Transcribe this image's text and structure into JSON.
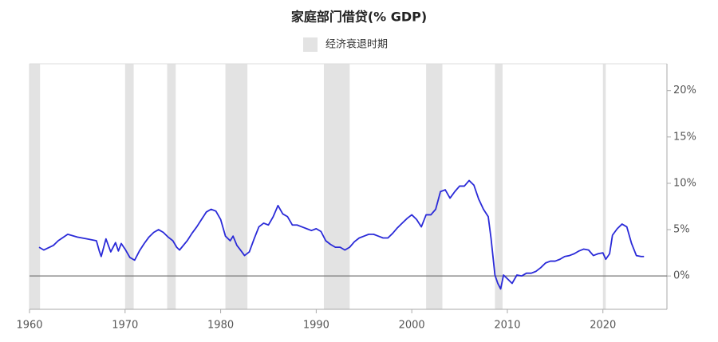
{
  "chart_data": {
    "type": "line",
    "title": "家庭部门借贷(% GDP)",
    "legend_label": "经济衰退时期",
    "recession_color": "#e3e3e3",
    "recessions": [
      [
        1960.0,
        1961.1
      ],
      [
        1970.0,
        1970.9
      ],
      [
        1974.4,
        1975.3
      ],
      [
        1980.5,
        1982.8
      ],
      [
        1990.8,
        1993.5
      ],
      [
        2001.5,
        2003.2
      ],
      [
        2008.7,
        2009.5
      ],
      [
        2020.0,
        2020.3
      ]
    ],
    "hline": 0,
    "xlim": [
      1960,
      2026.7
    ],
    "ylim": [
      -3.6,
      22.9
    ],
    "xticks": [
      1960,
      1970,
      1980,
      1990,
      2000,
      2010,
      2020
    ],
    "yticks": [
      {
        "value": 0,
        "label": "0%"
      },
      {
        "value": 5,
        "label": "5%"
      },
      {
        "value": 10,
        "label": "10%"
      },
      {
        "value": 15,
        "label": "15%"
      },
      {
        "value": 20,
        "label": "20%"
      }
    ],
    "y_axis_side": "right",
    "x": [
      1961,
      1961.5,
      1962.5,
      1963,
      1964,
      1965,
      1966,
      1967,
      1967.3,
      1967.5,
      1968,
      1968.5,
      1969,
      1969.3,
      1969.6,
      1970,
      1970.5,
      1971,
      1971.5,
      1972,
      1972.5,
      1973,
      1973.5,
      1974,
      1974.5,
      1975,
      1975.4,
      1975.7,
      1976.5,
      1977,
      1977.5,
      1978,
      1978.5,
      1979,
      1979.5,
      1980,
      1980.5,
      1981,
      1981.3,
      1981.7,
      1982,
      1982.5,
      1983,
      1983.5,
      1984,
      1984.5,
      1985,
      1985.5,
      1986,
      1986.5,
      1987,
      1987.5,
      1988,
      1988.5,
      1989,
      1989.5,
      1990,
      1990.5,
      1991,
      1991.5,
      1992,
      1992.5,
      1993,
      1993.5,
      1994,
      1994.5,
      1995,
      1995.5,
      1996,
      1996.5,
      1997,
      1997.5,
      1998,
      1998.5,
      1999,
      1999.5,
      2000,
      2000.5,
      2001,
      2001.5,
      2002,
      2002.5,
      2003,
      2003.5,
      2004,
      2004.5,
      2005,
      2005.5,
      2006,
      2006.5,
      2007,
      2007.5,
      2008,
      2008.3,
      2008.7,
      2009,
      2009.3,
      2009.6,
      2010,
      2010.5,
      2011,
      2011.5,
      2012,
      2012.5,
      2013,
      2013.5,
      2014,
      2014.5,
      2015,
      2015.5,
      2016,
      2016.5,
      2017,
      2017.5,
      2018,
      2018.5,
      2019,
      2019.5,
      2020,
      2020.3,
      2020.7,
      2021,
      2021.5,
      2022,
      2022.5,
      2023,
      2023.5,
      2024,
      2024.3
    ],
    "series": [
      {
        "name": "家庭部门借贷",
        "color": "#2a2ad8",
        "values": [
          3.1,
          2.8,
          3.3,
          3.8,
          4.5,
          4.2,
          4.0,
          3.8,
          2.7,
          2.1,
          4.0,
          2.6,
          3.6,
          2.7,
          3.5,
          2.9,
          2.0,
          1.7,
          2.7,
          3.5,
          4.2,
          4.7,
          5.0,
          4.7,
          4.2,
          3.8,
          3.1,
          2.8,
          3.8,
          4.6,
          5.3,
          6.1,
          6.9,
          7.2,
          7.0,
          6.1,
          4.3,
          3.8,
          4.3,
          3.3,
          2.9,
          2.2,
          2.6,
          4.0,
          5.3,
          5.7,
          5.5,
          6.4,
          7.6,
          6.7,
          6.4,
          5.5,
          5.5,
          5.3,
          5.1,
          4.9,
          5.1,
          4.8,
          3.8,
          3.4,
          3.1,
          3.1,
          2.8,
          3.1,
          3.7,
          4.1,
          4.3,
          4.5,
          4.5,
          4.3,
          4.1,
          4.1,
          4.6,
          5.2,
          5.7,
          6.2,
          6.6,
          6.1,
          5.3,
          6.6,
          6.6,
          7.2,
          9.1,
          9.3,
          8.4,
          9.1,
          9.7,
          9.7,
          10.3,
          9.8,
          8.3,
          7.2,
          6.4,
          4.0,
          0.1,
          -0.8,
          -1.4,
          0.1,
          -0.3,
          -0.8,
          0.1,
          0,
          0.3,
          0.3,
          0.5,
          0.9,
          1.4,
          1.6,
          1.6,
          1.8,
          2.1,
          2.2,
          2.4,
          2.7,
          2.9,
          2.8,
          2.2,
          2.4,
          2.5,
          1.8,
          2.4,
          4.4,
          5.1,
          5.6,
          5.3,
          3.5,
          2.2,
          2.1,
          2.1
        ]
      }
    ]
  }
}
